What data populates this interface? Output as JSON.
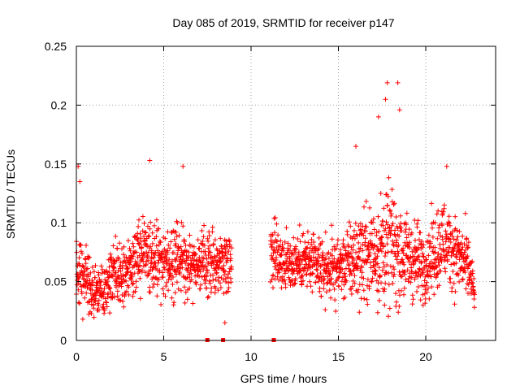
{
  "chart_data": {
    "type": "scatter",
    "title": "Day 085 of 2019, SRMTID for receiver p147",
    "xlabel": "GPS time / hours",
    "ylabel": "SRMTID / TECUs",
    "xlim": [
      0,
      24
    ],
    "ylim": [
      0,
      0.25
    ],
    "xticks": [
      0,
      5,
      10,
      15,
      20
    ],
    "xtick_labels": [
      "0",
      "5",
      "10",
      "15",
      "20"
    ],
    "yticks": [
      0,
      0.05,
      0.1,
      0.15,
      0.2,
      0.25
    ],
    "ytick_labels": [
      "0",
      "0.05",
      "0.1",
      "0.15",
      "0.2",
      "0.25"
    ],
    "grid": true,
    "marker": "plus",
    "color": "#ff0000",
    "data_gap_hours": [
      8.9,
      11.1
    ],
    "zero_markers_x": [
      7.5,
      8.4,
      11.3
    ],
    "notable_points": [
      {
        "x": 0.1,
        "y": 0.148
      },
      {
        "x": 0.2,
        "y": 0.135
      },
      {
        "x": 4.2,
        "y": 0.153
      },
      {
        "x": 6.1,
        "y": 0.148
      },
      {
        "x": 8.5,
        "y": 0.015
      },
      {
        "x": 16.0,
        "y": 0.165
      },
      {
        "x": 17.3,
        "y": 0.19
      },
      {
        "x": 17.7,
        "y": 0.205
      },
      {
        "x": 17.8,
        "y": 0.219
      },
      {
        "x": 18.4,
        "y": 0.219
      },
      {
        "x": 18.5,
        "y": 0.196
      },
      {
        "x": 21.2,
        "y": 0.148
      }
    ],
    "profile": [
      {
        "x": 0.0,
        "mean": 0.06,
        "spread": 0.022
      },
      {
        "x": 0.5,
        "mean": 0.06,
        "spread": 0.024
      },
      {
        "x": 1.0,
        "mean": 0.04,
        "spread": 0.015
      },
      {
        "x": 1.5,
        "mean": 0.045,
        "spread": 0.016
      },
      {
        "x": 2.0,
        "mean": 0.055,
        "spread": 0.016
      },
      {
        "x": 3.0,
        "mean": 0.058,
        "spread": 0.016
      },
      {
        "x": 4.0,
        "mean": 0.08,
        "spread": 0.025
      },
      {
        "x": 5.0,
        "mean": 0.063,
        "spread": 0.02
      },
      {
        "x": 6.0,
        "mean": 0.07,
        "spread": 0.02
      },
      {
        "x": 7.0,
        "mean": 0.065,
        "spread": 0.018
      },
      {
        "x": 8.0,
        "mean": 0.065,
        "spread": 0.017
      },
      {
        "x": 8.9,
        "mean": 0.07,
        "spread": 0.017
      },
      {
        "x": 11.1,
        "mean": 0.08,
        "spread": 0.02
      },
      {
        "x": 12.0,
        "mean": 0.065,
        "spread": 0.017
      },
      {
        "x": 13.0,
        "mean": 0.068,
        "spread": 0.017
      },
      {
        "x": 14.0,
        "mean": 0.06,
        "spread": 0.017
      },
      {
        "x": 15.0,
        "mean": 0.062,
        "spread": 0.018
      },
      {
        "x": 16.0,
        "mean": 0.07,
        "spread": 0.025
      },
      {
        "x": 17.0,
        "mean": 0.075,
        "spread": 0.03
      },
      {
        "x": 18.0,
        "mean": 0.08,
        "spread": 0.035
      },
      {
        "x": 19.0,
        "mean": 0.07,
        "spread": 0.025
      },
      {
        "x": 20.0,
        "mean": 0.065,
        "spread": 0.02
      },
      {
        "x": 21.0,
        "mean": 0.085,
        "spread": 0.025
      },
      {
        "x": 22.0,
        "mean": 0.07,
        "spread": 0.02
      },
      {
        "x": 22.5,
        "mean": 0.06,
        "spread": 0.02
      },
      {
        "x": 22.8,
        "mean": 0.038,
        "spread": 0.008
      }
    ]
  }
}
